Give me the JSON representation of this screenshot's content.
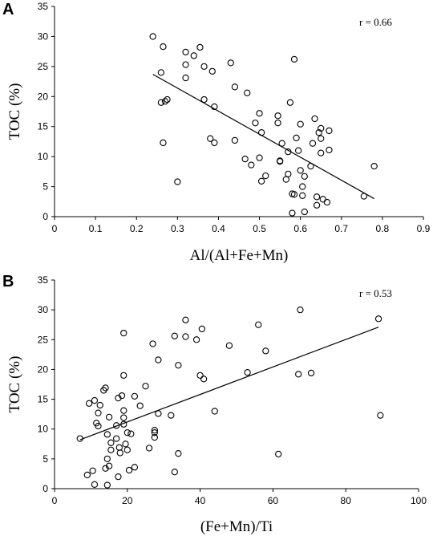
{
  "chart_data": [
    {
      "panel": "A",
      "type": "scatter",
      "xlabel": "Al/(Al+Fe+Mn)",
      "ylabel": "TOC (%)",
      "xlim": [
        0,
        0.9
      ],
      "ylim": [
        0,
        35
      ],
      "xticks": [
        "0",
        "0.1",
        "0.2",
        "0.3",
        "0.4",
        "0.5",
        "0.6",
        "0.7",
        "0.8",
        "0.9"
      ],
      "yticks": [
        "0",
        "5",
        "10",
        "15",
        "20",
        "25",
        "30",
        "35"
      ],
      "annotation": "r = 0.66",
      "trendline": {
        "x": [
          0.24,
          0.78
        ],
        "y": [
          23.7,
          3.0
        ]
      },
      "points": [
        {
          "x": 0.24,
          "y": 30.0
        },
        {
          "x": 0.26,
          "y": 24.0
        },
        {
          "x": 0.265,
          "y": 28.3
        },
        {
          "x": 0.26,
          "y": 19.0
        },
        {
          "x": 0.27,
          "y": 19.2
        },
        {
          "x": 0.275,
          "y": 19.5
        },
        {
          "x": 0.265,
          "y": 12.3
        },
        {
          "x": 0.3,
          "y": 5.8
        },
        {
          "x": 0.32,
          "y": 27.4
        },
        {
          "x": 0.32,
          "y": 25.3
        },
        {
          "x": 0.32,
          "y": 23.1
        },
        {
          "x": 0.34,
          "y": 26.8
        },
        {
          "x": 0.355,
          "y": 28.2
        },
        {
          "x": 0.365,
          "y": 25.0
        },
        {
          "x": 0.365,
          "y": 19.5
        },
        {
          "x": 0.385,
          "y": 24.2
        },
        {
          "x": 0.39,
          "y": 18.3
        },
        {
          "x": 0.38,
          "y": 13.0
        },
        {
          "x": 0.39,
          "y": 12.3
        },
        {
          "x": 0.43,
          "y": 25.6
        },
        {
          "x": 0.44,
          "y": 21.6
        },
        {
          "x": 0.44,
          "y": 12.7
        },
        {
          "x": 0.465,
          "y": 9.6
        },
        {
          "x": 0.47,
          "y": 20.6
        },
        {
          "x": 0.48,
          "y": 8.6
        },
        {
          "x": 0.49,
          "y": 15.6
        },
        {
          "x": 0.5,
          "y": 17.2
        },
        {
          "x": 0.5,
          "y": 9.8
        },
        {
          "x": 0.505,
          "y": 14.0
        },
        {
          "x": 0.505,
          "y": 5.9
        },
        {
          "x": 0.515,
          "y": 6.8
        },
        {
          "x": 0.545,
          "y": 16.8
        },
        {
          "x": 0.545,
          "y": 15.6
        },
        {
          "x": 0.55,
          "y": 9.3
        },
        {
          "x": 0.55,
          "y": 9.2
        },
        {
          "x": 0.555,
          "y": 12.2
        },
        {
          "x": 0.565,
          "y": 6.2
        },
        {
          "x": 0.57,
          "y": 7.1
        },
        {
          "x": 0.57,
          "y": 10.8
        },
        {
          "x": 0.575,
          "y": 19.0
        },
        {
          "x": 0.58,
          "y": 3.8
        },
        {
          "x": 0.585,
          "y": 3.7
        },
        {
          "x": 0.58,
          "y": 0.6
        },
        {
          "x": 0.585,
          "y": 26.2
        },
        {
          "x": 0.59,
          "y": 13.1
        },
        {
          "x": 0.595,
          "y": 11.0
        },
        {
          "x": 0.6,
          "y": 15.4
        },
        {
          "x": 0.6,
          "y": 7.7
        },
        {
          "x": 0.605,
          "y": 5.0
        },
        {
          "x": 0.61,
          "y": 6.7
        },
        {
          "x": 0.605,
          "y": 3.5
        },
        {
          "x": 0.61,
          "y": 0.8
        },
        {
          "x": 0.625,
          "y": 8.4
        },
        {
          "x": 0.63,
          "y": 12.2
        },
        {
          "x": 0.635,
          "y": 16.3
        },
        {
          "x": 0.64,
          "y": 3.3
        },
        {
          "x": 0.64,
          "y": 1.9
        },
        {
          "x": 0.645,
          "y": 14.0
        },
        {
          "x": 0.65,
          "y": 14.7
        },
        {
          "x": 0.65,
          "y": 13.0
        },
        {
          "x": 0.65,
          "y": 10.6
        },
        {
          "x": 0.655,
          "y": 2.9
        },
        {
          "x": 0.67,
          "y": 14.3
        },
        {
          "x": 0.67,
          "y": 11.1
        },
        {
          "x": 0.665,
          "y": 2.4
        },
        {
          "x": 0.755,
          "y": 3.4
        },
        {
          "x": 0.78,
          "y": 8.4
        }
      ]
    },
    {
      "panel": "B",
      "type": "scatter",
      "xlabel": "(Fe+Mn)/Ti",
      "ylabel": "TOC (%)",
      "xlim": [
        0,
        100
      ],
      "ylim": [
        0,
        35
      ],
      "xticks": [
        "0",
        "20",
        "40",
        "60",
        "80",
        "100"
      ],
      "yticks": [
        "0",
        "5",
        "10",
        "15",
        "20",
        "25",
        "30",
        "35"
      ],
      "annotation": "r = 0.53",
      "trendline": {
        "x": [
          7,
          89
        ],
        "y": [
          8.2,
          27.1
        ]
      },
      "points": [
        {
          "x": 7,
          "y": 8.4
        },
        {
          "x": 9,
          "y": 2.3
        },
        {
          "x": 9.5,
          "y": 14.3
        },
        {
          "x": 10.5,
          "y": 3.0
        },
        {
          "x": 11,
          "y": 14.8
        },
        {
          "x": 11.5,
          "y": 11.0
        },
        {
          "x": 11,
          "y": 0.7
        },
        {
          "x": 12,
          "y": 10.5
        },
        {
          "x": 12,
          "y": 12.7
        },
        {
          "x": 12.5,
          "y": 14.0
        },
        {
          "x": 13.5,
          "y": 16.5
        },
        {
          "x": 14,
          "y": 16.9
        },
        {
          "x": 14,
          "y": 3.4
        },
        {
          "x": 14.5,
          "y": 0.6
        },
        {
          "x": 14.5,
          "y": 5.0
        },
        {
          "x": 14.5,
          "y": 9.1
        },
        {
          "x": 15,
          "y": 12.0
        },
        {
          "x": 15,
          "y": 3.8
        },
        {
          "x": 15.5,
          "y": 6.5
        },
        {
          "x": 15.5,
          "y": 7.7
        },
        {
          "x": 17,
          "y": 8.4
        },
        {
          "x": 17,
          "y": 10.6
        },
        {
          "x": 17.5,
          "y": 15.2
        },
        {
          "x": 17.5,
          "y": 2.0
        },
        {
          "x": 17.8,
          "y": 6.9
        },
        {
          "x": 18,
          "y": 6.0
        },
        {
          "x": 18.5,
          "y": 15.6
        },
        {
          "x": 19,
          "y": 26.1
        },
        {
          "x": 19,
          "y": 19.0
        },
        {
          "x": 19,
          "y": 13.1
        },
        {
          "x": 19,
          "y": 11.9
        },
        {
          "x": 19,
          "y": 10.8
        },
        {
          "x": 19.5,
          "y": 7.5
        },
        {
          "x": 20,
          "y": 6.5
        },
        {
          "x": 20,
          "y": 9.4
        },
        {
          "x": 20.5,
          "y": 3.1
        },
        {
          "x": 21,
          "y": 9.2
        },
        {
          "x": 22,
          "y": 3.6
        },
        {
          "x": 22,
          "y": 15.5
        },
        {
          "x": 23.5,
          "y": 13.9
        },
        {
          "x": 25,
          "y": 17.2
        },
        {
          "x": 26,
          "y": 6.8
        },
        {
          "x": 27,
          "y": 24.3
        },
        {
          "x": 27.5,
          "y": 9.8
        },
        {
          "x": 27.5,
          "y": 9.4
        },
        {
          "x": 27.5,
          "y": 8.6
        },
        {
          "x": 28.5,
          "y": 21.6
        },
        {
          "x": 28.5,
          "y": 12.6
        },
        {
          "x": 32,
          "y": 12.3
        },
        {
          "x": 33,
          "y": 25.6
        },
        {
          "x": 33,
          "y": 2.8
        },
        {
          "x": 34,
          "y": 20.7
        },
        {
          "x": 34,
          "y": 5.9
        },
        {
          "x": 36,
          "y": 28.3
        },
        {
          "x": 36,
          "y": 25.5
        },
        {
          "x": 39,
          "y": 25.0
        },
        {
          "x": 40,
          "y": 19.0
        },
        {
          "x": 40.5,
          "y": 26.8
        },
        {
          "x": 41,
          "y": 18.4
        },
        {
          "x": 44,
          "y": 13.0
        },
        {
          "x": 48,
          "y": 24.0
        },
        {
          "x": 53,
          "y": 19.5
        },
        {
          "x": 56,
          "y": 27.5
        },
        {
          "x": 58,
          "y": 23.1
        },
        {
          "x": 61.5,
          "y": 5.8
        },
        {
          "x": 67,
          "y": 19.2
        },
        {
          "x": 67.5,
          "y": 30.0
        },
        {
          "x": 70.5,
          "y": 19.4
        },
        {
          "x": 89,
          "y": 28.5
        },
        {
          "x": 89.5,
          "y": 12.3
        }
      ]
    }
  ]
}
